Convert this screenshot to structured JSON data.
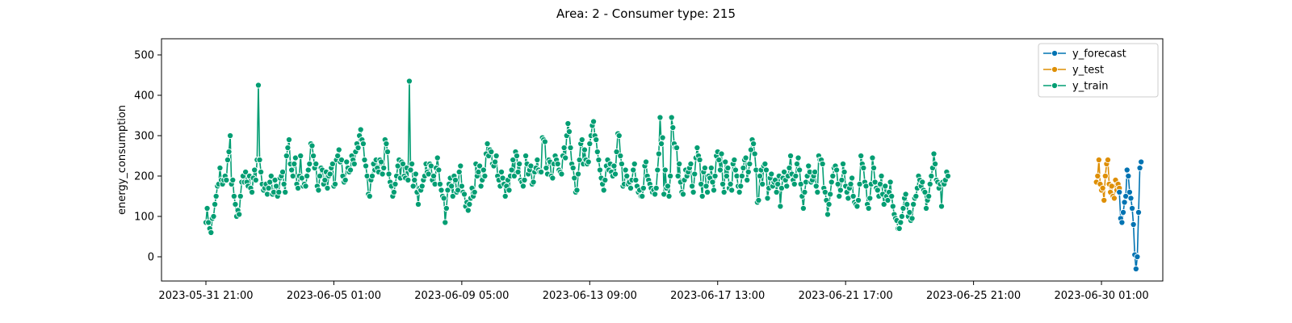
{
  "chart_data": {
    "type": "line",
    "title": "Area: 2 - Consumer type: 215",
    "xlabel": "",
    "ylabel": "energy_consumption",
    "x_tick_labels": [
      "2023-05-31 21:00",
      "2023-06-05 01:00",
      "2023-06-09 05:00",
      "2023-06-13 09:00",
      "2023-06-17 13:00",
      "2023-06-21 17:00",
      "2023-06-25 21:00",
      "2023-06-30 01:00"
    ],
    "x_range": [
      "2023-05-31 21:00",
      "2023-07-01 06:00"
    ],
    "y_ticks": [
      0,
      100,
      200,
      300,
      400,
      500
    ],
    "ylim": [
      -60,
      540
    ],
    "sampling_interval_hours": 1,
    "grid": false,
    "legend_position": "top-right",
    "series": [
      {
        "name": "y_forecast",
        "color": "#0173b2",
        "start": "2023-06-30 15:00",
        "values": [
          160,
          95,
          85,
          110,
          135,
          150,
          215,
          200,
          160,
          145,
          120,
          80,
          5,
          -30,
          0,
          110,
          220,
          235
        ]
      },
      {
        "name": "y_test",
        "color": "#de8f05",
        "start": "2023-06-29 21:00",
        "values": [
          185,
          200,
          240,
          180,
          165,
          170,
          140,
          200,
          230,
          240,
          180,
          160,
          175,
          150,
          145,
          190,
          165,
          180,
          170
        ]
      },
      {
        "name": "y_train",
        "color": "#029e73",
        "start": "2023-05-31 21:00",
        "values": [
          85,
          120,
          85,
          70,
          60,
          95,
          100,
          130,
          150,
          175,
          180,
          220,
          190,
          180,
          190,
          200,
          190,
          240,
          260,
          300,
          180,
          190,
          150,
          130,
          100,
          115,
          105,
          150,
          185,
          200,
          185,
          210,
          185,
          175,
          200,
          170,
          160,
          195,
          215,
          190,
          240,
          425,
          240,
          210,
          180,
          165,
          170,
          180,
          155,
          170,
          185,
          200,
          155,
          160,
          190,
          175,
          150,
          160,
          195,
          200,
          210,
          180,
          160,
          250,
          270,
          290,
          230,
          215,
          200,
          230,
          245,
          180,
          170,
          200,
          250,
          195,
          175,
          180,
          175,
          200,
          215,
          230,
          280,
          275,
          250,
          220,
          230,
          175,
          165,
          200,
          220,
          215,
          180,
          190,
          210,
          170,
          200,
          205,
          220,
          230,
          175,
          180,
          240,
          250,
          265,
          235,
          240,
          200,
          185,
          190,
          235,
          220,
          210,
          215,
          250,
          240,
          230,
          260,
          280,
          270,
          300,
          315,
          290,
          280,
          240,
          225,
          200,
          155,
          150,
          190,
          200,
          230,
          215,
          240,
          220,
          210,
          240,
          235,
          205,
          220,
          290,
          280,
          260,
          205,
          185,
          175,
          150,
          160,
          180,
          200,
          225,
          240,
          195,
          235,
          230,
          200,
          195,
          220,
          190,
          435,
          215,
          230,
          175,
          190,
          205,
          160,
          130,
          170,
          165,
          175,
          190,
          200,
          230,
          210,
          205,
          230,
          225,
          190,
          200,
          180,
          220,
          245,
          215,
          180,
          165,
          150,
          145,
          85,
          120,
          165,
          180,
          195,
          175,
          150,
          200,
          190,
          160,
          165,
          210,
          225,
          175,
          160,
          155,
          125,
          135,
          115,
          130,
          145,
          170,
          150,
          160,
          230,
          200,
          210,
          225,
          175,
          190,
          215,
          200,
          255,
          280,
          250,
          265,
          260,
          230,
          225,
          235,
          250,
          200,
          190,
          175,
          210,
          195,
          180,
          150,
          175,
          190,
          165,
          200,
          215,
          240,
          200,
          260,
          250,
          210,
          230,
          190,
          185,
          175,
          190,
          250,
          230,
          205,
          215,
          225,
          180,
          185,
          210,
          220,
          240,
          215,
          210,
          210,
          295,
          290,
          285,
          220,
          205,
          240,
          235,
          200,
          195,
          230,
          250,
          240,
          230,
          215,
          210,
          205,
          250,
          270,
          245,
          300,
          330,
          310,
          270,
          230,
          220,
          195,
          160,
          165,
          205,
          240,
          280,
          290,
          230,
          265,
          240,
          230,
          235,
          280,
          300,
          325,
          335,
          300,
          290,
          260,
          240,
          215,
          195,
          180,
          165,
          190,
          225,
          240,
          215,
          230,
          210,
          200,
          225,
          205,
          260,
          305,
          300,
          250,
          230,
          175,
          180,
          215,
          200,
          180,
          185,
          170,
          190,
          215,
          230,
          190,
          175,
          160,
          165,
          150,
          150,
          170,
          225,
          235,
          200,
          190,
          180,
          170,
          160,
          165,
          155,
          170,
          215,
          255,
          345,
          280,
          295,
          155,
          215,
          170,
          175,
          150,
          200,
          345,
          320,
          280,
          270,
          270,
          200,
          230,
          185,
          160,
          155,
          190,
          215,
          200,
          210,
          220,
          230,
          175,
          160,
          205,
          245,
          270,
          250,
          240,
          180,
          150,
          210,
          220,
          175,
          160,
          200,
          195,
          220,
          185,
          165,
          200,
          250,
          260,
          240,
          215,
          255,
          180,
          160,
          235,
          200,
          220,
          170,
          180,
          165,
          230,
          240,
          215,
          200,
          175,
          160,
          175,
          200,
          220,
          240,
          245,
          190,
          210,
          230,
          265,
          290,
          280,
          255,
          215,
          135,
          140,
          200,
          215,
          180,
          225,
          230,
          215,
          145,
          170,
          195,
          205,
          175,
          185,
          190,
          160,
          180,
          200,
          125,
          170,
          195,
          210,
          190,
          175,
          200,
          220,
          250,
          205,
          190,
          180,
          200,
          230,
          245,
          215,
          180,
          150,
          120,
          160,
          185,
          200,
          225,
          210,
          185,
          190,
          200,
          210,
          175,
          160,
          250,
          240,
          240,
          230,
          170,
          160,
          140,
          105,
          130,
          155,
          185,
          200,
          220,
          225,
          215,
          180,
          150,
          165,
          190,
          230,
          210,
          175,
          160,
          145,
          170,
          180,
          195,
          150,
          135,
          130,
          125,
          140,
          180,
          250,
          230,
          220,
          185,
          175,
          130,
          120,
          145,
          180,
          245,
          220,
          185,
          170,
          165,
          150,
          180,
          200,
          155,
          130,
          175,
          150,
          140,
          160,
          185,
          150,
          125,
          105,
          95,
          90,
          70,
          70,
          85,
          100,
          120,
          145,
          155,
          130,
          100,
          110,
          90,
          95,
          130,
          145,
          150,
          170,
          200,
          190,
          175,
          185,
          165,
          160,
          120,
          140,
          150,
          180,
          200,
          220,
          255,
          230,
          190,
          185,
          170,
          180,
          125,
          185,
          180,
          190,
          210,
          200
        ]
      }
    ]
  }
}
